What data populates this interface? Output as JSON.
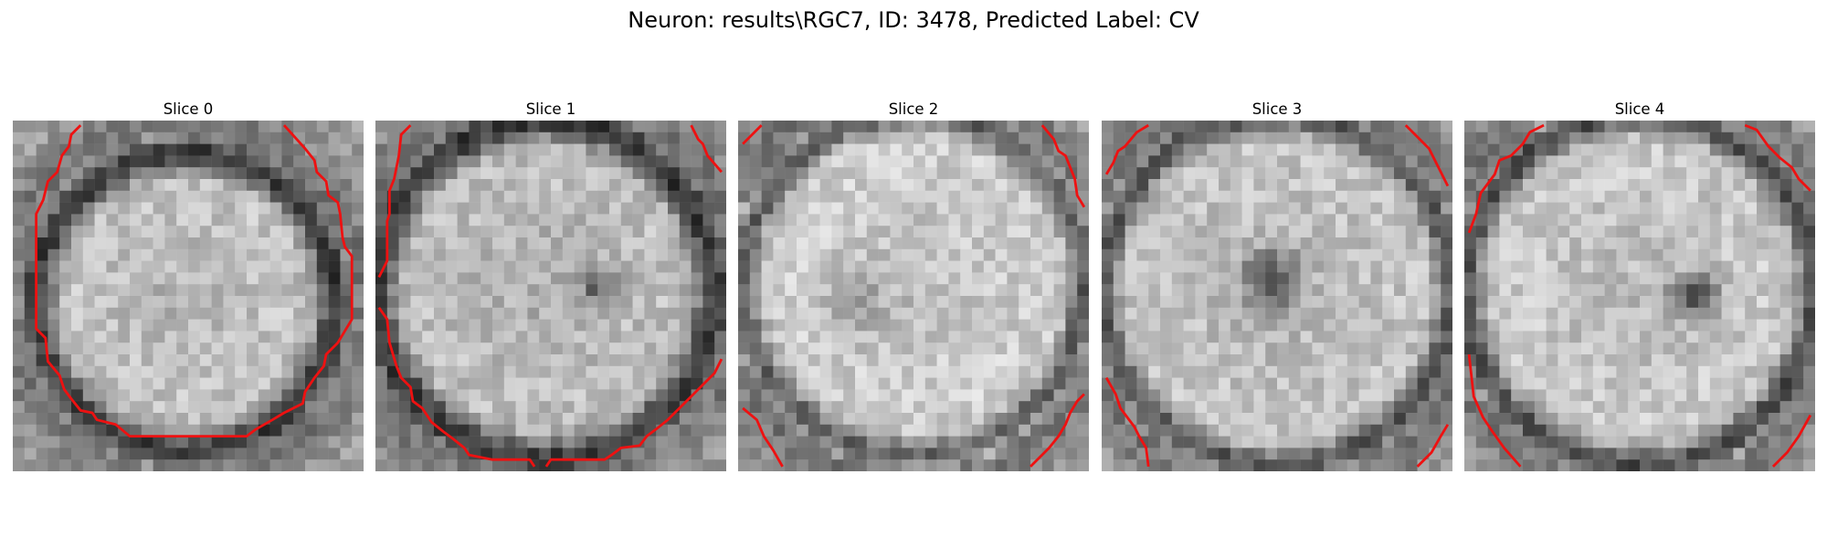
{
  "figure": {
    "title": "Neuron: results\\RGC7, ID: 3478, Predicted Label: CV"
  },
  "panels": [
    {
      "title": "Slice 0",
      "variant": 0
    },
    {
      "title": "Slice 1",
      "variant": 1
    },
    {
      "title": "Slice 2",
      "variant": 2
    },
    {
      "title": "Slice 3",
      "variant": 3
    },
    {
      "title": "Slice 4",
      "variant": 4
    }
  ],
  "colors": {
    "contour": "#ee1111",
    "colormap": "gray"
  }
}
